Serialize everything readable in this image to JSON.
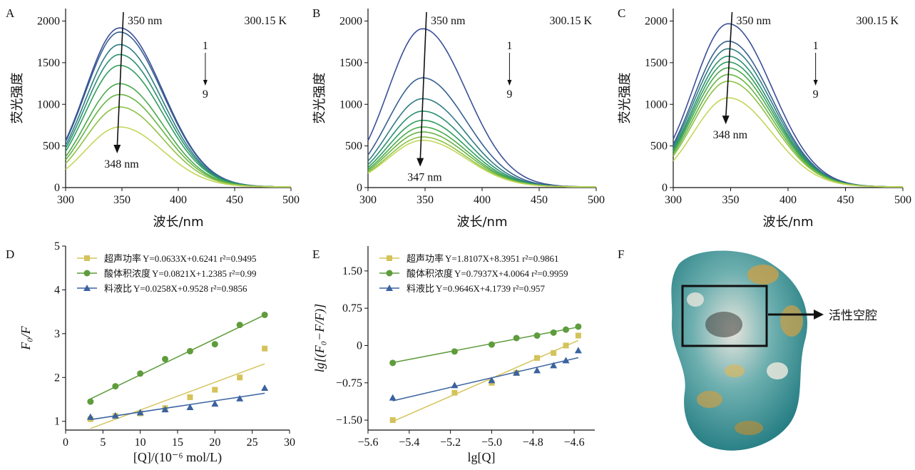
{
  "panel_labels": [
    "A",
    "B",
    "C",
    "D",
    "E",
    "F"
  ],
  "chart_data": [
    {
      "id": "A",
      "type": "line",
      "xlabel": "波长/nm",
      "ylabel": "荧光强度",
      "xlim": [
        300,
        500
      ],
      "ylim": [
        0,
        2150
      ],
      "xticks": [
        300,
        350,
        400,
        450,
        500
      ],
      "yticks": [
        0,
        500,
        1000,
        1500,
        2000
      ],
      "peak_x": 348,
      "sigma": 34,
      "annotations": {
        "temperature": "300.15 K",
        "top_label": "350 nm",
        "bottom_label": "348 nm",
        "series_start": "1",
        "series_end": "9"
      },
      "series": [
        {
          "peak": 1910,
          "color": "#3b4f97"
        },
        {
          "peak": 1860,
          "color": "#365f90"
        },
        {
          "peak": 1710,
          "color": "#2f7c84"
        },
        {
          "peak": 1590,
          "color": "#2b8f72"
        },
        {
          "peak": 1460,
          "color": "#2f9d5e"
        },
        {
          "peak": 1240,
          "color": "#4aa94c"
        },
        {
          "peak": 1110,
          "color": "#66b444"
        },
        {
          "peak": 960,
          "color": "#8cc244"
        },
        {
          "peak": 720,
          "color": "#c3d65a"
        }
      ]
    },
    {
      "id": "B",
      "type": "line",
      "xlabel": "波长/nm",
      "ylabel": "荧光强度",
      "xlim": [
        300,
        500
      ],
      "ylim": [
        0,
        2150
      ],
      "xticks": [
        300,
        350,
        400,
        450,
        500
      ],
      "yticks": [
        0,
        500,
        1000,
        1500,
        2000
      ],
      "peak_x": 348,
      "sigma": 34,
      "annotations": {
        "temperature": "300.15 K",
        "top_label": "350 nm",
        "bottom_label": "347 nm",
        "series_start": "1",
        "series_end": "9"
      },
      "series": [
        {
          "peak": 1900,
          "color": "#3b4f97"
        },
        {
          "peak": 1310,
          "color": "#365f90"
        },
        {
          "peak": 1060,
          "color": "#2f7c84"
        },
        {
          "peak": 910,
          "color": "#2b8f72"
        },
        {
          "peak": 800,
          "color": "#2f9d5e"
        },
        {
          "peak": 720,
          "color": "#4aa94c"
        },
        {
          "peak": 660,
          "color": "#66b444"
        },
        {
          "peak": 600,
          "color": "#8cc244"
        },
        {
          "peak": 560,
          "color": "#c3d65a"
        }
      ]
    },
    {
      "id": "C",
      "type": "line",
      "xlabel": "波长/nm",
      "ylabel": "荧光强度",
      "xlim": [
        300,
        500
      ],
      "ylim": [
        0,
        2150
      ],
      "xticks": [
        300,
        350,
        400,
        450,
        500
      ],
      "yticks": [
        0,
        500,
        1000,
        1500,
        2000
      ],
      "peak_x": 348,
      "sigma": 34,
      "annotations": {
        "temperature": "300.15 K",
        "top_label": "350 nm",
        "bottom_label": "348 nm",
        "series_start": "1",
        "series_end": "9"
      },
      "series": [
        {
          "peak": 1960,
          "color": "#3b4f97"
        },
        {
          "peak": 1750,
          "color": "#365f90"
        },
        {
          "peak": 1660,
          "color": "#2f7c84"
        },
        {
          "peak": 1570,
          "color": "#2b8f72"
        },
        {
          "peak": 1500,
          "color": "#2f9d5e"
        },
        {
          "peak": 1430,
          "color": "#4aa94c"
        },
        {
          "peak": 1350,
          "color": "#66b444"
        },
        {
          "peak": 1270,
          "color": "#8cc244"
        },
        {
          "peak": 1070,
          "color": "#c3d65a"
        }
      ]
    },
    {
      "id": "D",
      "type": "scatter",
      "xlabel": "[Q]/(10⁻⁶ mol/L)",
      "ylabel": "F₀/F",
      "xlim": [
        0,
        30
      ],
      "ylim": [
        0.8,
        5.0
      ],
      "xticks": [
        0,
        5,
        10,
        15,
        20,
        25,
        30
      ],
      "yticks": [
        1,
        2,
        3,
        4,
        5
      ],
      "series": [
        {
          "name": "超声功率",
          "equation": "Y=0.0633X+0.6241 r²=0.9495",
          "color": "#d4c35a",
          "marker": "square",
          "slope": 0.0633,
          "intercept": 0.6241,
          "x": [
            3.33,
            6.67,
            10,
            13.33,
            16.67,
            20,
            23.33,
            26.67
          ],
          "y": [
            1.05,
            1.12,
            1.18,
            1.3,
            1.55,
            1.72,
            2.0,
            2.66
          ]
        },
        {
          "name": "酸体积浓度",
          "equation": "Y=0.0821X+1.2385 r²=0.99",
          "color": "#5e9c3c",
          "marker": "circle",
          "slope": 0.0821,
          "intercept": 1.2385,
          "x": [
            3.33,
            6.67,
            10,
            13.33,
            16.67,
            20,
            23.33,
            26.67
          ],
          "y": [
            1.45,
            1.8,
            2.09,
            2.42,
            2.6,
            2.76,
            3.2,
            3.43
          ]
        },
        {
          "name": "料液比",
          "equation": "Y=0.0258X+0.9528 r²=0.9856",
          "color": "#3a62a0",
          "marker": "triangle",
          "slope": 0.0258,
          "intercept": 0.9528,
          "x": [
            3.33,
            6.67,
            10,
            13.33,
            16.67,
            20,
            23.33,
            26.67
          ],
          "y": [
            1.1,
            1.13,
            1.2,
            1.27,
            1.32,
            1.4,
            1.52,
            1.76
          ]
        }
      ]
    },
    {
      "id": "E",
      "type": "scatter",
      "xlabel": "lg[Q]",
      "ylabel": "lg[(F₀−F/F)]",
      "xlim": [
        -5.6,
        -4.5
      ],
      "ylim": [
        -1.7,
        2.0
      ],
      "xticks": [
        -5.6,
        -5.4,
        -5.2,
        -5.0,
        -4.8,
        -4.6
      ],
      "xtick_labels": [
        "−5.6",
        "−5.4",
        "−5.2",
        "−5.0",
        "−4.8",
        "−4.6"
      ],
      "yticks": [
        -1.5,
        -0.75,
        0,
        0.75,
        1.5
      ],
      "ytick_labels": [
        "−1.50",
        "−0.75",
        "0",
        "0.75",
        "1.50"
      ],
      "series": [
        {
          "name": "超声功率",
          "equation": "Y=1.8107X+8.3951 r²=0.9861",
          "color": "#d4c35a",
          "marker": "square",
          "slope": 1.8107,
          "intercept": 8.3951,
          "x": [
            -5.48,
            -5.18,
            -5.0,
            -4.88,
            -4.78,
            -4.7,
            -4.64,
            -4.58
          ],
          "y": [
            -1.5,
            -0.95,
            -0.75,
            -0.55,
            -0.25,
            -0.15,
            0.0,
            0.2
          ]
        },
        {
          "name": "酸体积浓度",
          "equation": "Y=0.7937X+4.0064 r²=0.9959",
          "color": "#5e9c3c",
          "marker": "circle",
          "slope": 0.7937,
          "intercept": 4.0064,
          "x": [
            -5.48,
            -5.18,
            -5.0,
            -4.88,
            -4.78,
            -4.7,
            -4.64,
            -4.58
          ],
          "y": [
            -0.35,
            -0.12,
            0.02,
            0.15,
            0.2,
            0.26,
            0.32,
            0.38
          ]
        },
        {
          "name": "料液比",
          "equation": "Y=0.9646X+4.1739 r²=0.957",
          "color": "#3a62a0",
          "marker": "triangle",
          "slope": 0.9646,
          "intercept": 4.1739,
          "x": [
            -5.48,
            -5.18,
            -5.0,
            -4.88,
            -4.78,
            -4.7,
            -4.64,
            -4.58
          ],
          "y": [
            -1.05,
            -0.8,
            -0.7,
            -0.55,
            -0.5,
            -0.4,
            -0.3,
            -0.1
          ]
        }
      ]
    }
  ],
  "panel_F": {
    "callout": "活性空腔"
  }
}
